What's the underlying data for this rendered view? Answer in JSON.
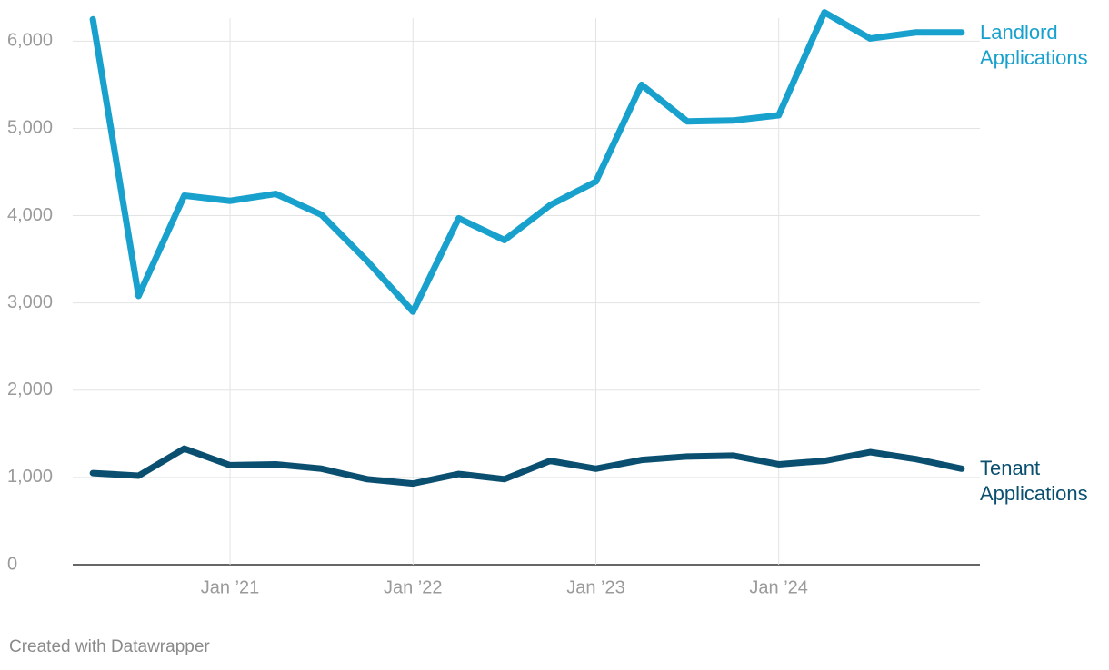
{
  "chart_data": {
    "type": "line",
    "x": [
      2020.25,
      2020.5,
      2020.75,
      2021,
      2021.25,
      2021.5,
      2021.75,
      2022,
      2022.25,
      2022.5,
      2022.75,
      2023,
      2023.25,
      2023.5,
      2023.75,
      2024,
      2024.25,
      2024.5,
      2024.75,
      2025
    ],
    "series": [
      {
        "name": "Landlord Applications",
        "color": "#18a1cd",
        "values": [
          6250,
          3080,
          4230,
          4170,
          4250,
          4010,
          3480,
          2900,
          3970,
          3720,
          4120,
          4390,
          5500,
          5080,
          5090,
          5150,
          6330,
          6030,
          6100,
          6100
        ]
      },
      {
        "name": "Tenant Applications",
        "color": "#0a4f70",
        "values": [
          1050,
          1020,
          1330,
          1140,
          1150,
          1100,
          980,
          930,
          1040,
          980,
          1190,
          1100,
          1200,
          1240,
          1250,
          1150,
          1190,
          1290,
          1210,
          1100
        ]
      }
    ],
    "xlim": [
      2020.14,
      2025.1
    ],
    "xticks": [
      {
        "value": 2021,
        "label": "Jan ’21"
      },
      {
        "value": 2022,
        "label": "Jan ’22"
      },
      {
        "value": 2023,
        "label": "Jan ’23"
      },
      {
        "value": 2024,
        "label": "Jan ’24"
      }
    ],
    "ylim": [
      0,
      6300
    ],
    "yticks": [
      0,
      {
        "value": 1000,
        "label": "1,000"
      },
      {
        "value": 2000,
        "label": "2,000"
      },
      {
        "value": 3000,
        "label": "3,000"
      },
      {
        "value": 4000,
        "label": "4,000"
      },
      {
        "value": 5000,
        "label": "5,000"
      },
      {
        "value": 6000,
        "label": "6,000"
      }
    ],
    "grid": true,
    "footer": "Created with Datawrapper"
  }
}
